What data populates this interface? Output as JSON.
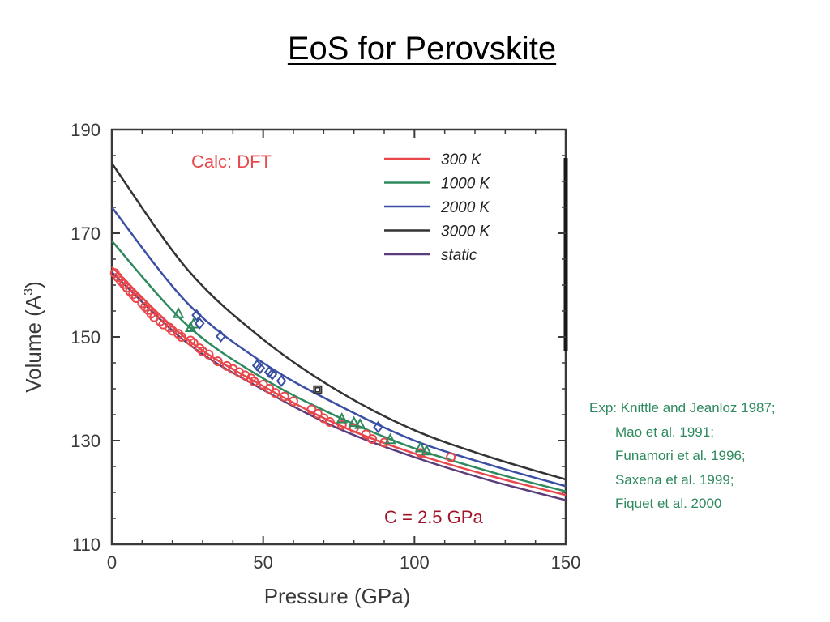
{
  "slide": {
    "title": "EoS for Perovskite"
  },
  "colors": {
    "t300": "#e8484b",
    "t1000": "#2e8a5e",
    "t2000": "#3a4fa3",
    "t3000": "#333333",
    "static": "#5a3d7a",
    "calc_text": "#e8484b",
    "note_text": "#a0142a",
    "ref_text": "#2e8a5e"
  },
  "chart_data": {
    "type": "line",
    "xlabel": "Pressure (GPa)",
    "ylabel": "Volume (A",
    "ylabel_sup": "3",
    "ylabel_close": ")",
    "xlim": [
      0,
      150
    ],
    "ylim": [
      110,
      190
    ],
    "xticks": [
      0,
      50,
      100,
      150
    ],
    "yticks": [
      110,
      130,
      150,
      170,
      190
    ],
    "grid": false,
    "legend_position": "top-right",
    "annotations": {
      "calc": "Calc: DFT",
      "note": "C = 2.5 GPa"
    },
    "series": [
      {
        "name": "300 K",
        "color_key": "t300",
        "x": [
          0,
          25,
          50,
          75,
          100,
          125,
          150
        ],
        "y": [
          163.5,
          149.5,
          140.5,
          133.0,
          127.5,
          123.2,
          119.5
        ]
      },
      {
        "name": "1000 K",
        "color_key": "t1000",
        "x": [
          0,
          25,
          50,
          75,
          100,
          125,
          150
        ],
        "y": [
          168.5,
          152.2,
          142.0,
          134.5,
          128.5,
          124.0,
          120.2
        ]
      },
      {
        "name": "2000 K",
        "color_key": "t2000",
        "x": [
          0,
          25,
          50,
          75,
          100,
          125,
          150
        ],
        "y": [
          175.0,
          156.5,
          145.0,
          136.8,
          130.0,
          125.3,
          121.2
        ]
      },
      {
        "name": "3000 K",
        "color_key": "t3000",
        "x": [
          0,
          25,
          50,
          75,
          100,
          125,
          150
        ],
        "y": [
          183.5,
          163.0,
          149.5,
          139.5,
          132.0,
          126.8,
          122.5
        ]
      },
      {
        "name": "static",
        "color_key": "static",
        "x": [
          0,
          25,
          50,
          75,
          100,
          125,
          150
        ],
        "y": [
          162.5,
          148.8,
          139.8,
          132.3,
          126.8,
          122.3,
          118.5
        ]
      }
    ],
    "experimental": [
      {
        "marker": "circle",
        "color_key": "t300",
        "points": [
          [
            1,
            162.3
          ],
          [
            2,
            161.5
          ],
          [
            3,
            160.8
          ],
          [
            4,
            160.2
          ],
          [
            5,
            159.5
          ],
          [
            6,
            158.8
          ],
          [
            7,
            158.2
          ],
          [
            8,
            157.5
          ],
          [
            10,
            156.5
          ],
          [
            11,
            155.8
          ],
          [
            12,
            155.2
          ],
          [
            13,
            154.5
          ],
          [
            14,
            153.8
          ],
          [
            16,
            153.0
          ],
          [
            17,
            152.4
          ],
          [
            19,
            151.8
          ],
          [
            20,
            151.2
          ],
          [
            22,
            150.6
          ],
          [
            23,
            150.0
          ],
          [
            26,
            149.3
          ],
          [
            27,
            148.8
          ],
          [
            29,
            147.8
          ],
          [
            30,
            147.2
          ],
          [
            32,
            146.6
          ],
          [
            35,
            145.3
          ],
          [
            38,
            144.4
          ],
          [
            40,
            143.8
          ],
          [
            42,
            143.2
          ],
          [
            44,
            142.6
          ],
          [
            46,
            142.0
          ],
          [
            47,
            141.4
          ],
          [
            50,
            140.8
          ],
          [
            52,
            140.0
          ],
          [
            54,
            139.2
          ],
          [
            57,
            138.5
          ],
          [
            60,
            137.6
          ],
          [
            66,
            136.0
          ],
          [
            68,
            135.2
          ],
          [
            70,
            134.3
          ],
          [
            72,
            133.6
          ],
          [
            76,
            133.0
          ],
          [
            80,
            132.4
          ],
          [
            84,
            131.2
          ],
          [
            86,
            130.3
          ],
          [
            90,
            129.6
          ],
          [
            102,
            127.6
          ],
          [
            112,
            126.8
          ]
        ]
      },
      {
        "marker": "triangle",
        "color_key": "t1000",
        "points": [
          [
            22,
            154.5
          ],
          [
            26,
            151.8
          ],
          [
            27,
            152.5
          ],
          [
            76,
            134.2
          ],
          [
            80,
            133.5
          ],
          [
            82,
            133.1
          ],
          [
            92,
            130.2
          ],
          [
            102,
            128.6
          ],
          [
            104,
            128.0
          ]
        ]
      },
      {
        "marker": "diamond",
        "color_key": "t2000",
        "points": [
          [
            28,
            154.2
          ],
          [
            29,
            152.6
          ],
          [
            36,
            150.1
          ],
          [
            48,
            144.5
          ],
          [
            49,
            144.0
          ],
          [
            52,
            143.2
          ],
          [
            53,
            142.8
          ],
          [
            56,
            141.5
          ],
          [
            88,
            132.6
          ]
        ]
      },
      {
        "marker": "square",
        "color_key": "t3000",
        "points": [
          [
            68,
            139.8
          ]
        ]
      }
    ]
  },
  "references": {
    "first": "Exp: Knittle and Jeanloz 1987;",
    "rest": [
      "Mao et al. 1991;",
      "Funamori et al. 1996;",
      "Saxena et al. 1999;",
      "Fiquet et al. 2000"
    ]
  }
}
